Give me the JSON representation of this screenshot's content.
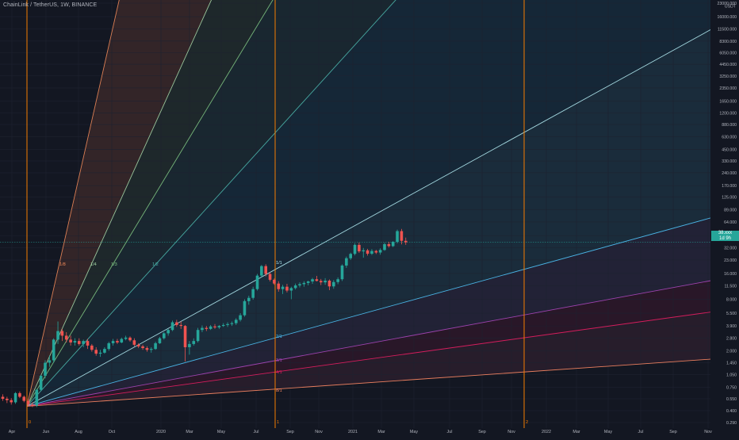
{
  "header": {
    "symbol_title": "ChainLink / TetherUS, 1W, BINANCE"
  },
  "colors": {
    "background": "#131722",
    "axis_text": "#b2b5be",
    "up_candle": "#26a69a",
    "down_candle": "#ef5350",
    "time_lines": "#f57c00",
    "fan_lines": [
      "#f57c4f",
      "#81c784",
      "#4db6ac",
      "#29b6f6",
      "#4fc3f7",
      "#b2ebf2",
      "#ab47bc",
      "#e91e63",
      "#f06292",
      "#ff8a65"
    ]
  },
  "chart_data": {
    "type": "candlestick",
    "title": "",
    "price_scale": "log",
    "quote_currency": "USDT",
    "ylim": [
      0.29,
      23000
    ],
    "y_ticks": [
      "23000.000",
      "16000.000",
      "11500.000",
      "8300.000",
      "6050.000",
      "4450.000",
      "3250.000",
      "2350.000",
      "1650.000",
      "1200.000",
      "880.000",
      "630.000",
      "450.000",
      "330.000",
      "240.000",
      "170.000",
      "125.000",
      "89.000",
      "64.000",
      "44.000",
      "32.000",
      "23.000",
      "16.000",
      "11.500",
      "8.000",
      "5.500",
      "3.900",
      "2.800",
      "2.000",
      "1.450",
      "1.050",
      "0.750",
      "0.550",
      "0.400",
      "0.290"
    ],
    "x_ticks": [
      "Apr",
      "Jun",
      "Aug",
      "Oct",
      "2020",
      "Mar",
      "May",
      "Jul",
      "Sep",
      "Nov",
      "2021",
      "Mar",
      "May",
      "Jul",
      "Sep",
      "Nov",
      "2022",
      "Mar",
      "May",
      "Jul",
      "Sep",
      "Nov"
    ],
    "last_price_label": [
      "38.xxx",
      "1d 9h"
    ],
    "time_cycle_labels": [
      "0",
      "1",
      "2"
    ],
    "gann_fan_labels": [
      "1/8",
      "1/4",
      "1/3",
      "1/2",
      "1/1",
      "2/1",
      "3/1",
      "4/1",
      "8/1"
    ],
    "gann_fan": {
      "origin_date": "2019-05-13",
      "origin_price": 0.45,
      "unit_date": "2020-08-10",
      "unit_price": 18.0
    },
    "candles": [
      {
        "o": 0.58,
        "h": 0.62,
        "l": 0.52,
        "c": 0.55
      },
      {
        "o": 0.55,
        "h": 0.58,
        "l": 0.49,
        "c": 0.53
      },
      {
        "o": 0.53,
        "h": 0.56,
        "l": 0.47,
        "c": 0.5
      },
      {
        "o": 0.5,
        "h": 0.66,
        "l": 0.48,
        "c": 0.64
      },
      {
        "o": 0.64,
        "h": 0.67,
        "l": 0.56,
        "c": 0.58
      },
      {
        "o": 0.58,
        "h": 0.6,
        "l": 0.5,
        "c": 0.52
      },
      {
        "o": 0.52,
        "h": 0.55,
        "l": 0.45,
        "c": 0.47
      },
      {
        "o": 0.47,
        "h": 0.5,
        "l": 0.44,
        "c": 0.46
      },
      {
        "o": 0.46,
        "h": 0.72,
        "l": 0.44,
        "c": 0.7
      },
      {
        "o": 0.7,
        "h": 1.05,
        "l": 0.68,
        "c": 1.02
      },
      {
        "o": 1.02,
        "h": 1.55,
        "l": 0.95,
        "c": 1.45
      },
      {
        "o": 1.45,
        "h": 1.75,
        "l": 1.3,
        "c": 1.55
      },
      {
        "o": 1.55,
        "h": 2.8,
        "l": 1.45,
        "c": 2.7
      },
      {
        "o": 2.7,
        "h": 4.4,
        "l": 2.4,
        "c": 3.4
      },
      {
        "o": 3.4,
        "h": 3.6,
        "l": 2.6,
        "c": 3.0
      },
      {
        "o": 3.0,
        "h": 3.3,
        "l": 2.5,
        "c": 2.7
      },
      {
        "o": 2.7,
        "h": 3.0,
        "l": 2.3,
        "c": 2.5
      },
      {
        "o": 2.5,
        "h": 2.8,
        "l": 2.3,
        "c": 2.6
      },
      {
        "o": 2.6,
        "h": 2.8,
        "l": 2.3,
        "c": 2.4
      },
      {
        "o": 2.4,
        "h": 2.7,
        "l": 2.2,
        "c": 2.6
      },
      {
        "o": 2.6,
        "h": 2.75,
        "l": 2.1,
        "c": 2.3
      },
      {
        "o": 2.3,
        "h": 2.4,
        "l": 1.95,
        "c": 2.05
      },
      {
        "o": 2.05,
        "h": 2.2,
        "l": 1.75,
        "c": 1.85
      },
      {
        "o": 1.85,
        "h": 2.05,
        "l": 1.7,
        "c": 1.9
      },
      {
        "o": 1.9,
        "h": 2.2,
        "l": 1.85,
        "c": 2.1
      },
      {
        "o": 2.1,
        "h": 2.55,
        "l": 2.0,
        "c": 2.45
      },
      {
        "o": 2.45,
        "h": 2.75,
        "l": 2.3,
        "c": 2.6
      },
      {
        "o": 2.6,
        "h": 2.75,
        "l": 2.4,
        "c": 2.5
      },
      {
        "o": 2.5,
        "h": 2.85,
        "l": 2.45,
        "c": 2.75
      },
      {
        "o": 2.75,
        "h": 3.0,
        "l": 2.65,
        "c": 2.85
      },
      {
        "o": 2.85,
        "h": 2.95,
        "l": 2.55,
        "c": 2.65
      },
      {
        "o": 2.65,
        "h": 2.8,
        "l": 2.25,
        "c": 2.35
      },
      {
        "o": 2.35,
        "h": 2.45,
        "l": 2.15,
        "c": 2.25
      },
      {
        "o": 2.25,
        "h": 2.35,
        "l": 2.05,
        "c": 2.15
      },
      {
        "o": 2.15,
        "h": 2.25,
        "l": 1.95,
        "c": 2.05
      },
      {
        "o": 2.05,
        "h": 2.2,
        "l": 1.9,
        "c": 2.1
      },
      {
        "o": 2.1,
        "h": 2.55,
        "l": 2.05,
        "c": 2.45
      },
      {
        "o": 2.45,
        "h": 2.9,
        "l": 2.4,
        "c": 2.8
      },
      {
        "o": 2.8,
        "h": 3.3,
        "l": 2.7,
        "c": 3.2
      },
      {
        "o": 3.2,
        "h": 3.6,
        "l": 3.0,
        "c": 3.5
      },
      {
        "o": 3.5,
        "h": 4.5,
        "l": 3.4,
        "c": 4.3
      },
      {
        "o": 4.3,
        "h": 4.6,
        "l": 3.8,
        "c": 4.0
      },
      {
        "o": 4.0,
        "h": 4.4,
        "l": 3.6,
        "c": 3.9
      },
      {
        "o": 3.9,
        "h": 4.0,
        "l": 1.5,
        "c": 2.2
      },
      {
        "o": 2.2,
        "h": 2.6,
        "l": 1.8,
        "c": 2.4
      },
      {
        "o": 2.4,
        "h": 2.8,
        "l": 2.3,
        "c": 2.6
      },
      {
        "o": 2.6,
        "h": 3.7,
        "l": 2.5,
        "c": 3.5
      },
      {
        "o": 3.5,
        "h": 3.95,
        "l": 3.3,
        "c": 3.7
      },
      {
        "o": 3.7,
        "h": 3.9,
        "l": 3.4,
        "c": 3.6
      },
      {
        "o": 3.6,
        "h": 4.0,
        "l": 3.5,
        "c": 3.85
      },
      {
        "o": 3.85,
        "h": 4.1,
        "l": 3.6,
        "c": 3.75
      },
      {
        "o": 3.75,
        "h": 4.0,
        "l": 3.6,
        "c": 3.9
      },
      {
        "o": 3.9,
        "h": 4.2,
        "l": 3.8,
        "c": 4.0
      },
      {
        "o": 4.0,
        "h": 4.3,
        "l": 3.8,
        "c": 4.1
      },
      {
        "o": 4.1,
        "h": 4.4,
        "l": 3.9,
        "c": 4.2
      },
      {
        "o": 4.2,
        "h": 4.8,
        "l": 4.0,
        "c": 4.6
      },
      {
        "o": 4.6,
        "h": 5.5,
        "l": 4.4,
        "c": 5.2
      },
      {
        "o": 5.2,
        "h": 8.0,
        "l": 5.0,
        "c": 7.6
      },
      {
        "o": 7.6,
        "h": 8.8,
        "l": 6.9,
        "c": 8.3
      },
      {
        "o": 8.3,
        "h": 11.2,
        "l": 7.9,
        "c": 10.5
      },
      {
        "o": 10.5,
        "h": 15.8,
        "l": 10.1,
        "c": 15.1
      },
      {
        "o": 15.1,
        "h": 20.1,
        "l": 14.5,
        "c": 19.5
      },
      {
        "o": 19.5,
        "h": 20.5,
        "l": 14.8,
        "c": 15.8
      },
      {
        "o": 15.8,
        "h": 16.5,
        "l": 12.9,
        "c": 13.5
      },
      {
        "o": 13.5,
        "h": 14.0,
        "l": 11.8,
        "c": 12.2
      },
      {
        "o": 12.2,
        "h": 13.0,
        "l": 9.8,
        "c": 10.5
      },
      {
        "o": 10.5,
        "h": 11.8,
        "l": 9.2,
        "c": 11.2
      },
      {
        "o": 11.2,
        "h": 12.1,
        "l": 9.6,
        "c": 10.1
      },
      {
        "o": 10.1,
        "h": 11.2,
        "l": 8.0,
        "c": 10.8
      },
      {
        "o": 10.8,
        "h": 12.2,
        "l": 10.4,
        "c": 11.6
      },
      {
        "o": 11.6,
        "h": 12.6,
        "l": 11.0,
        "c": 12.0
      },
      {
        "o": 12.0,
        "h": 13.0,
        "l": 11.2,
        "c": 12.4
      },
      {
        "o": 12.4,
        "h": 13.2,
        "l": 11.6,
        "c": 12.9
      },
      {
        "o": 12.9,
        "h": 14.2,
        "l": 12.1,
        "c": 13.7
      },
      {
        "o": 13.7,
        "h": 15.0,
        "l": 12.9,
        "c": 13.1
      },
      {
        "o": 13.1,
        "h": 13.8,
        "l": 11.7,
        "c": 12.6
      },
      {
        "o": 12.6,
        "h": 14.1,
        "l": 11.8,
        "c": 13.2
      },
      {
        "o": 13.2,
        "h": 13.6,
        "l": 10.2,
        "c": 11.3
      },
      {
        "o": 11.3,
        "h": 13.4,
        "l": 10.6,
        "c": 12.7
      },
      {
        "o": 12.7,
        "h": 14.4,
        "l": 12.0,
        "c": 13.7
      },
      {
        "o": 13.7,
        "h": 20.5,
        "l": 13.1,
        "c": 19.8
      },
      {
        "o": 19.8,
        "h": 25.2,
        "l": 18.6,
        "c": 24.1
      },
      {
        "o": 24.1,
        "h": 28.0,
        "l": 23.0,
        "c": 27.1
      },
      {
        "o": 27.1,
        "h": 36.0,
        "l": 26.0,
        "c": 34.5
      },
      {
        "o": 34.5,
        "h": 36.8,
        "l": 27.8,
        "c": 29.0
      },
      {
        "o": 29.0,
        "h": 31.8,
        "l": 24.5,
        "c": 29.8
      },
      {
        "o": 29.8,
        "h": 31.0,
        "l": 25.9,
        "c": 27.2
      },
      {
        "o": 27.2,
        "h": 30.8,
        "l": 26.3,
        "c": 29.3
      },
      {
        "o": 29.3,
        "h": 30.2,
        "l": 27.0,
        "c": 28.1
      },
      {
        "o": 28.1,
        "h": 31.5,
        "l": 26.5,
        "c": 30.1
      },
      {
        "o": 30.1,
        "h": 36.6,
        "l": 29.4,
        "c": 35.2
      },
      {
        "o": 35.2,
        "h": 37.5,
        "l": 32.1,
        "c": 33.4
      },
      {
        "o": 33.4,
        "h": 38.2,
        "l": 32.5,
        "c": 37.5
      },
      {
        "o": 37.5,
        "h": 52.0,
        "l": 36.0,
        "c": 50.0
      },
      {
        "o": 50.0,
        "h": 53.0,
        "l": 35.0,
        "c": 38.5
      },
      {
        "o": 38.5,
        "h": 42.0,
        "l": 34.5,
        "c": 37.0
      }
    ]
  }
}
